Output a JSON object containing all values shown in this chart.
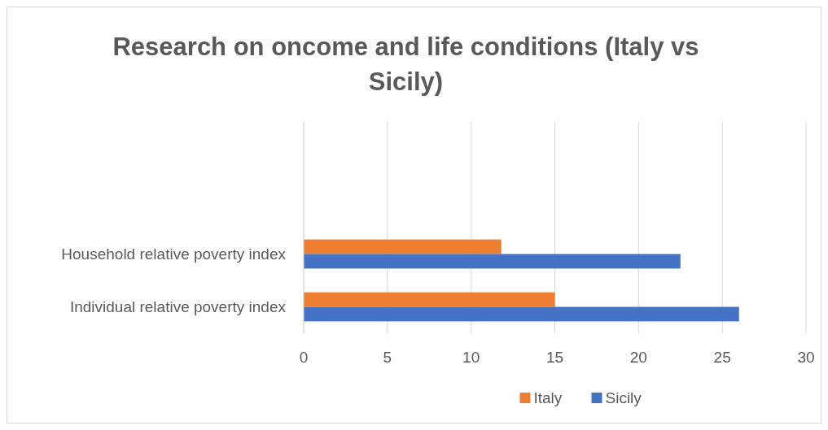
{
  "chart_data": {
    "type": "bar",
    "orientation": "horizontal",
    "title": "Research on oncome and life conditions (Italy vs Sicily)",
    "categories": [
      null,
      null,
      "Household relative poverty index",
      "Individual relative poverty index"
    ],
    "series": [
      {
        "name": "Italy",
        "color": "#ed7d31",
        "values": [
          null,
          null,
          11.8,
          15
        ]
      },
      {
        "name": "Sicily",
        "color": "#4472c4",
        "values": [
          null,
          null,
          22.5,
          26
        ]
      }
    ],
    "xlim": [
      0,
      30
    ],
    "xticks": [
      0,
      5,
      10,
      15,
      20,
      25,
      30
    ],
    "grid": "x",
    "legend": "bottom"
  }
}
